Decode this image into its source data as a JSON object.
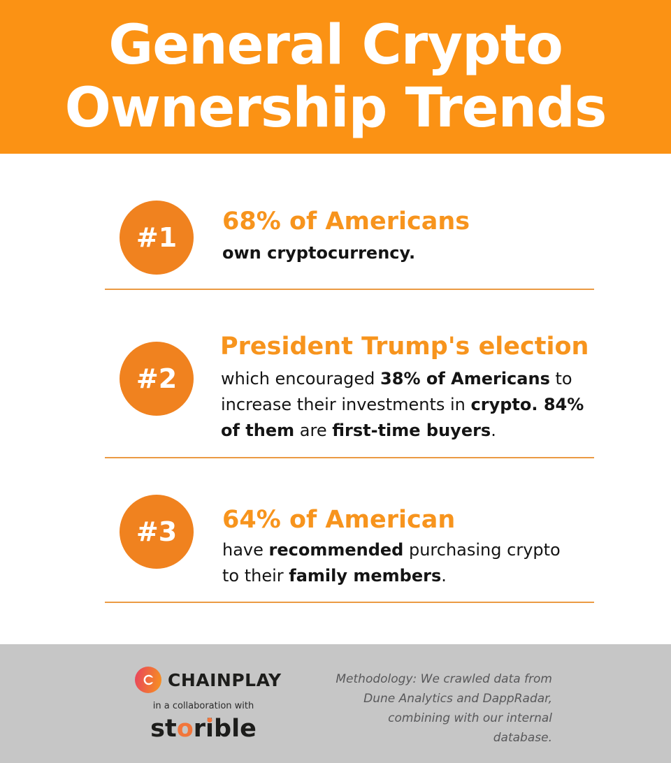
{
  "header": {
    "title_lines": [
      "General Crypto",
      "Ownership Trends"
    ]
  },
  "items": [
    {
      "badge": "#1",
      "heading": "68% of Americans",
      "body_lines": [
        [
          {
            "text": "own cryptocurrency.",
            "bold": true
          }
        ]
      ]
    },
    {
      "badge": "#2",
      "heading": "President Trump's election",
      "body_lines": [
        [
          {
            "text": "which encouraged ",
            "bold": false
          },
          {
            "text": "38% of Americans",
            "bold": true
          },
          {
            "text": " to",
            "bold": false
          }
        ],
        [
          {
            "text": "increase their investments in ",
            "bold": false
          },
          {
            "text": "crypto. 84%",
            "bold": true
          }
        ],
        [
          {
            "text": "of them",
            "bold": true
          },
          {
            "text": " are ",
            "bold": false
          },
          {
            "text": "first-time buyers",
            "bold": true
          },
          {
            "text": ".",
            "bold": false
          }
        ]
      ]
    },
    {
      "badge": "#3",
      "heading": "64% of American",
      "body_lines": [
        [
          {
            "text": "have ",
            "bold": false
          },
          {
            "text": "recommended",
            "bold": true
          },
          {
            "text": " purchasing crypto",
            "bold": false
          }
        ],
        [
          {
            "text": "to their ",
            "bold": false
          },
          {
            "text": "family members",
            "bold": true
          },
          {
            "text": ".",
            "bold": false
          }
        ]
      ]
    }
  ],
  "footer": {
    "chainplay_wordmark": "CHAINPLAY",
    "collaboration_text": "in a collaboration with",
    "storible_wordmark": {
      "part_st": "st",
      "part_o": "o",
      "part_r": "r",
      "part_i": "i",
      "part_ble": "ble"
    },
    "methodology_lines": [
      "Methodology: We crawled data from",
      "Dune Analytics and DappRadar,",
      "combining with our internal",
      "database."
    ]
  },
  "colors": {
    "header_bg": "#FB9214",
    "badge_orange": "#F0821F",
    "heading_orange": "#F7941D",
    "divider_orange": "#EB9A43",
    "body_text": "#141414",
    "footer_bg": "#C6C6C6",
    "methodology_text": "#58585A",
    "chainplay_gradient_start": "#E8425F",
    "chainplay_gradient_end": "#F7941D",
    "storible_accent": "#F2763B",
    "logo_text": "#1D1D1B"
  }
}
